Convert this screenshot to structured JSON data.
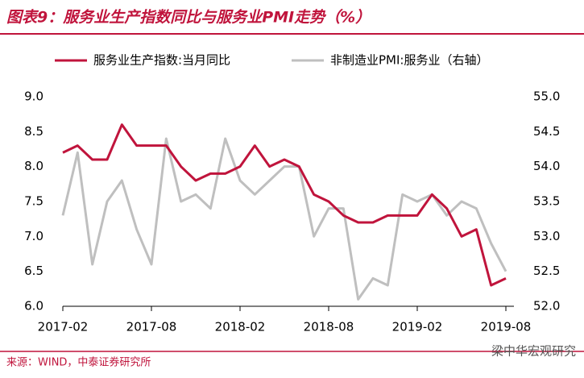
{
  "chart_data": {
    "type": "line",
    "title": "图表9：服务业生产指数同比与服务业PMI走势（%）",
    "source": "来源：WIND，中泰证券研究所",
    "watermark": "梁中华宏观研究",
    "categories": [
      "2017-02",
      null,
      null,
      null,
      null,
      null,
      "2017-08",
      null,
      null,
      null,
      null,
      null,
      "2018-02",
      null,
      null,
      null,
      null,
      null,
      "2018-08",
      null,
      null,
      null,
      null,
      null,
      "2019-02",
      null,
      null,
      null,
      null,
      null,
      "2019-08"
    ],
    "series": [
      {
        "name": "服务业生产指数:当月同比",
        "color": "#c0143c",
        "axis": "y",
        "values": [
          8.2,
          8.3,
          8.1,
          8.1,
          8.6,
          8.3,
          8.3,
          8.3,
          8.0,
          7.8,
          7.9,
          7.9,
          8.0,
          8.3,
          8.0,
          8.1,
          8.0,
          7.6,
          7.5,
          7.3,
          7.2,
          7.2,
          7.3,
          7.3,
          7.3,
          7.6,
          7.4,
          7.0,
          7.1,
          6.3,
          6.4
        ]
      },
      {
        "name": "非制造业PMI:服务业（右轴）",
        "color": "#bfbfbf",
        "axis": "y2",
        "values": [
          53.3,
          54.2,
          52.6,
          53.5,
          53.8,
          53.1,
          52.6,
          54.4,
          53.5,
          53.6,
          53.4,
          54.4,
          53.8,
          53.6,
          53.8,
          54.0,
          54.0,
          53.0,
          53.4,
          53.4,
          52.1,
          52.4,
          52.3,
          53.6,
          53.5,
          53.6,
          53.3,
          53.5,
          53.4,
          52.9,
          52.5
        ]
      }
    ],
    "ylim": [
      6.0,
      9.0
    ],
    "yticks": [
      {
        "value": 6,
        "label": "6.0"
      },
      {
        "value": 6.5,
        "label": "6.5"
      },
      {
        "value": 7,
        "label": "7.0"
      },
      {
        "value": 7.5,
        "label": "7.5"
      },
      {
        "value": 8,
        "label": "8.0"
      },
      {
        "value": 8.5,
        "label": "8.5"
      },
      {
        "value": 9,
        "label": "9.0"
      }
    ],
    "y2lim": [
      52.0,
      55.0
    ],
    "y2ticks": [
      {
        "value": 52,
        "label": "52.0"
      },
      {
        "value": 52.5,
        "label": "52.5"
      },
      {
        "value": 53,
        "label": "53.0"
      },
      {
        "value": 53.5,
        "label": "53.5"
      },
      {
        "value": 54,
        "label": "54.0"
      },
      {
        "value": 54.5,
        "label": "54.5"
      },
      {
        "value": 55,
        "label": "55.0"
      }
    ]
  }
}
